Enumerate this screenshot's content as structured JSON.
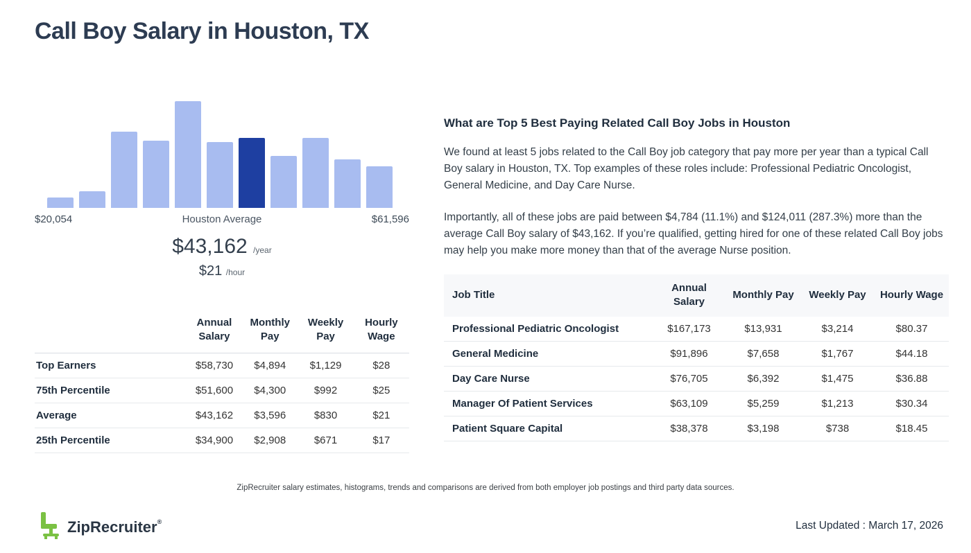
{
  "page": {
    "title": "Call Boy Salary in Houston, TX",
    "disclaimer": "ZipRecruiter salary estimates, histograms, trends and comparisons are derived from both employer job postings and third party data sources.",
    "last_updated": "Last Updated : March 17, 2026",
    "brand": "ZipRecruiter",
    "registered_mark": "®",
    "brand_green": "#7ac143"
  },
  "histogram": {
    "min_label": "$20,054",
    "center_label": "Houston Average",
    "max_label": "$61,596",
    "average_year": "$43,162",
    "year_suffix": "/year",
    "average_hour": "$21",
    "hour_suffix": "/hour",
    "bar_color": "#a8bcf0",
    "highlight_color": "#1e3fa1"
  },
  "chart_data": {
    "type": "bar",
    "title": "Call Boy salary distribution in Houston, TX",
    "x_min_label": "$20,054",
    "x_max_label": "$61,596",
    "center_label": "Houston Average",
    "values": [
      15,
      24,
      110,
      97,
      154,
      95,
      101,
      75,
      101,
      70,
      60
    ],
    "highlight_index": 6,
    "annotations": {
      "average_yearly": "$43,162 /year",
      "average_hourly": "$21 /hour"
    },
    "legend": "off",
    "grid": "off"
  },
  "salary_table": {
    "headers": [
      "",
      "Annual Salary",
      "Monthly Pay",
      "Weekly Pay",
      "Hourly Wage"
    ],
    "rows": [
      [
        "Top Earners",
        "$58,730",
        "$4,894",
        "$1,129",
        "$28"
      ],
      [
        "75th Percentile",
        "$51,600",
        "$4,300",
        "$992",
        "$25"
      ],
      [
        "Average",
        "$43,162",
        "$3,596",
        "$830",
        "$21"
      ],
      [
        "25th Percentile",
        "$34,900",
        "$2,908",
        "$671",
        "$17"
      ]
    ]
  },
  "related": {
    "heading": "What are Top 5 Best Paying Related Call Boy Jobs in Houston",
    "para1": "We found at least 5 jobs related to the Call Boy job category that pay more per year than a typical Call Boy salary in Houston, TX. Top examples of these roles include: Professional Pediatric Oncologist, General Medicine, and Day Care Nurse.",
    "para2": "Importantly, all of these jobs are paid between $4,784 (11.1%) and $124,011 (287.3%) more than the average Call Boy salary of $43,162. If you’re qualified, getting hired for one of these related Call Boy jobs may help you make more money than that of the average Nurse position.",
    "table": {
      "headers": [
        "Job Title",
        "Annual Salary",
        "Monthly Pay",
        "Weekly Pay",
        "Hourly Wage"
      ],
      "rows": [
        [
          "Professional Pediatric Oncologist",
          "$167,173",
          "$13,931",
          "$3,214",
          "$80.37"
        ],
        [
          "General Medicine",
          "$91,896",
          "$7,658",
          "$1,767",
          "$44.18"
        ],
        [
          "Day Care Nurse",
          "$76,705",
          "$6,392",
          "$1,475",
          "$36.88"
        ],
        [
          "Manager Of Patient Services",
          "$63,109",
          "$5,259",
          "$1,213",
          "$30.34"
        ],
        [
          "Patient Square Capital",
          "$38,378",
          "$3,198",
          "$738",
          "$18.45"
        ]
      ]
    }
  }
}
